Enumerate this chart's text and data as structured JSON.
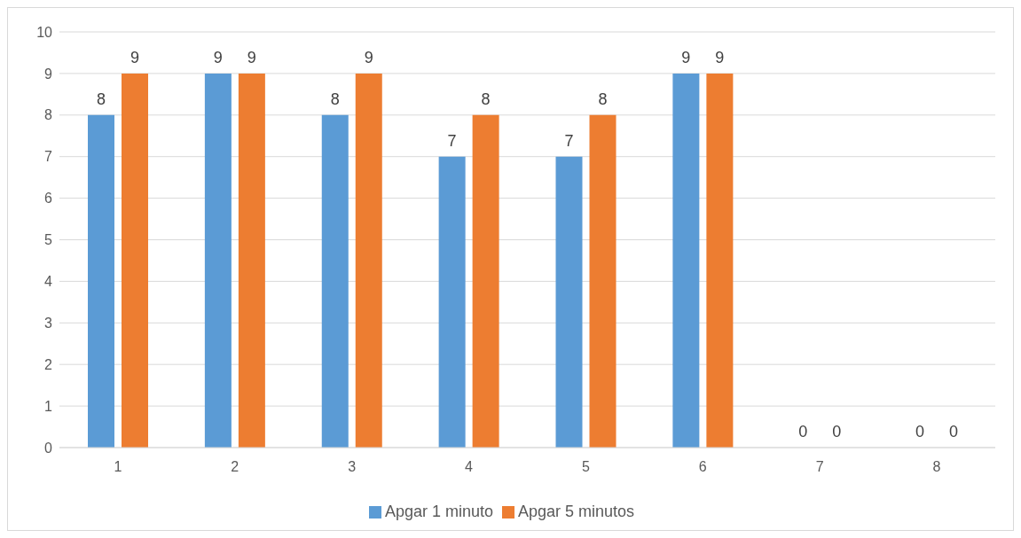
{
  "chart_data": {
    "type": "bar",
    "categories": [
      "1",
      "2",
      "3",
      "4",
      "5",
      "6",
      "7",
      "8"
    ],
    "series": [
      {
        "name": "Apgar 1 minuto",
        "color": "#5b9bd5",
        "values": [
          8,
          9,
          8,
          7,
          7,
          9,
          0,
          0
        ]
      },
      {
        "name": "Apgar 5 minutos",
        "color": "#ed7d31",
        "values": [
          9,
          9,
          9,
          8,
          8,
          9,
          0,
          0
        ]
      }
    ],
    "ylim": [
      0,
      10
    ],
    "yticks": [
      0,
      1,
      2,
      3,
      4,
      5,
      6,
      7,
      8,
      9,
      10
    ],
    "grid": "y",
    "legend": "bottom",
    "data_labels": true
  }
}
